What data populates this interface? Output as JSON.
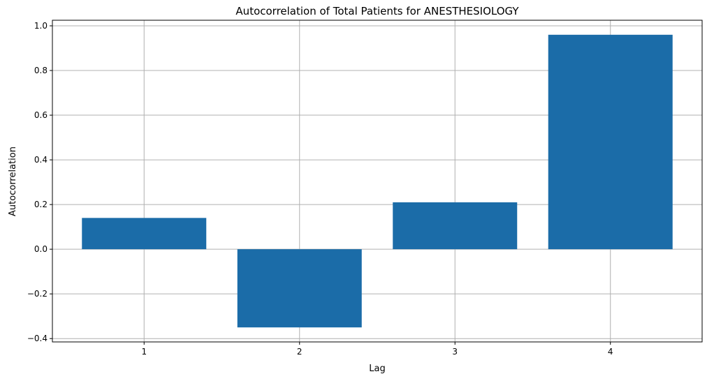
{
  "chart_data": {
    "type": "bar",
    "title": "Autocorrelation of Total Patients for ANESTHESIOLOGY",
    "xlabel": "Lag",
    "ylabel": "Autocorrelation",
    "categories": [
      "1",
      "2",
      "3",
      "4"
    ],
    "x": [
      1,
      2,
      3,
      4
    ],
    "values": [
      0.14,
      -0.35,
      0.21,
      0.96
    ],
    "xlim": [
      0.41,
      4.59
    ],
    "ylim": [
      -0.415,
      1.025
    ],
    "yticks": [
      -0.4,
      -0.2,
      0.0,
      0.2,
      0.4,
      0.6,
      0.8,
      1.0
    ],
    "ytick_labels": [
      "−0.4",
      "−0.2",
      "0.0",
      "0.2",
      "0.4",
      "0.6",
      "0.8",
      "1.0"
    ],
    "grid": true,
    "bar_color": "#1b6ca8"
  }
}
